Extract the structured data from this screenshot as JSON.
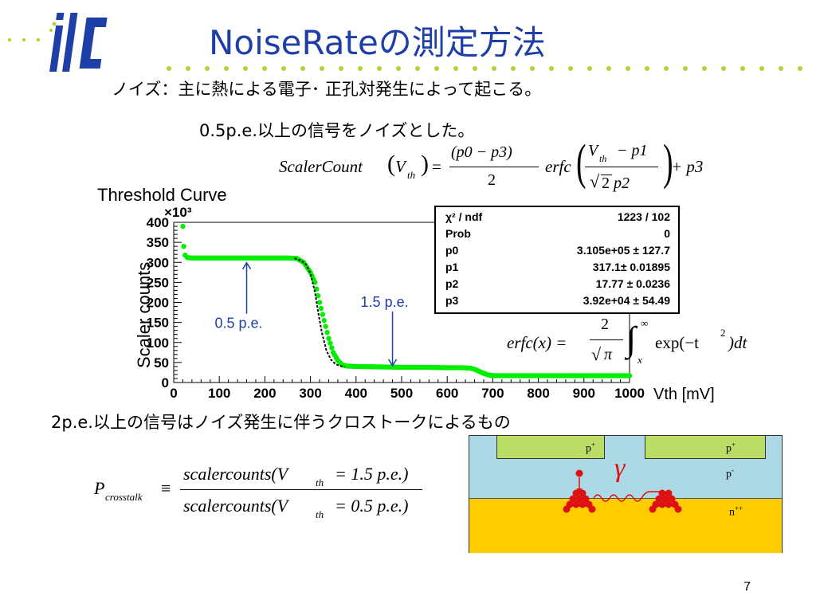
{
  "title": "NoiseRateの測定方法",
  "logo_text": "ilc",
  "intro_line1": "ノイズ：主に熱による電子･ 正孔対発生によって起こる。",
  "intro_line2": "0.5p.e.以上の信号をノイズとした。",
  "formula_scaler": {
    "lhs": "ScalerCount",
    "var": "V",
    "sub": "th",
    "num": "(p0 − p3)",
    "den": "2",
    "erfc": "erfc",
    "inner_num_a": "V",
    "inner_num_sub": "th",
    "inner_num_b": "− p1",
    "inner_den_sqrt": "2",
    "inner_den_b": "p2",
    "tail": "+ p3"
  },
  "formula_erfc": {
    "lhs": "erfc(x) =",
    "num": "2",
    "den": "π",
    "upper": "∞",
    "lower": "x",
    "body": "exp(−t",
    "exp": "2",
    "close": ")dt"
  },
  "chart_label": "Threshold Curve",
  "crosstalk_line": "2p.e.以上の信号はノイズ発生に伴うクロストークによるもの",
  "formula_crosstalk": {
    "lhs": "P",
    "lhs_sub": "crosstalk",
    "equiv": "≡",
    "num": "scalercounts(V",
    "num_sub": "th",
    "num_tail": "= 1.5 p.e.)",
    "den": "scalercounts(V",
    "den_sub": "th",
    "den_tail": "= 0.5 p.e.)"
  },
  "page_number": "7",
  "annotations": {
    "pe05": "0.5 p.e.",
    "pe15": "1.5 p.e."
  },
  "device": {
    "p_plus_left": "p",
    "p_plus_right": "p",
    "plus_sup": "+",
    "p_minus": "p",
    "minus_sup": "-",
    "n_pp": "n",
    "pp_sup": "++",
    "gamma": "γ",
    "colors": {
      "p_region": "#add8e6",
      "n_region": "#ffcc00",
      "p_plus": "#bbdd66",
      "electrons": "#dd1111",
      "photon": "#dd1111"
    }
  },
  "stats": {
    "rows": [
      {
        "k": "χ² / ndf",
        "v": "1223 / 102"
      },
      {
        "k": "Prob",
        "v": "0"
      },
      {
        "k": "p0",
        "v": "3.105e+05 ± 127.7"
      },
      {
        "k": "p1",
        "v": "317.1± 0.01895"
      },
      {
        "k": "p2",
        "v": "17.77 ± 0.0236"
      },
      {
        "k": "p3",
        "v": "3.92e+04 ± 54.49"
      }
    ]
  },
  "chart_data": {
    "type": "scatter",
    "title": "Threshold Curve",
    "xlabel": "Vth [mV]",
    "ylabel": "Scaler counts",
    "y_multiplier_label": "×10³",
    "xlim": [
      0,
      1000
    ],
    "ylim": [
      0,
      400
    ],
    "x_ticks": [
      "0",
      "100",
      "200",
      "300",
      "400",
      "500",
      "600",
      "700",
      "800",
      "900",
      "1000"
    ],
    "y_ticks": [
      "0",
      "50",
      "100",
      "150",
      "200",
      "250",
      "300",
      "350",
      "400"
    ],
    "colors": {
      "data": "#00ee00",
      "fit": "#000000"
    },
    "series": [
      {
        "name": "data",
        "x": [
          20,
          22,
          25,
          30,
          40,
          60,
          100,
          150,
          200,
          250,
          270,
          285,
          300,
          310,
          320,
          330,
          340,
          350,
          360,
          370,
          380,
          400,
          450,
          500,
          550,
          600,
          630,
          650,
          660,
          670,
          680,
          690,
          700,
          750,
          800,
          900,
          1000
        ],
        "y": [
          390,
          340,
          318,
          312,
          311,
          311,
          311,
          311,
          311,
          311,
          310,
          300,
          275,
          250,
          200,
          155,
          110,
          75,
          55,
          44,
          41,
          40,
          39,
          38,
          38,
          37,
          37,
          36,
          33,
          28,
          23,
          19,
          17,
          17,
          17,
          17,
          17
        ]
      },
      {
        "name": "fit",
        "x": [
          265,
          280,
          290,
          300,
          310,
          317,
          325,
          335,
          345,
          355,
          365,
          375
        ],
        "y": [
          310,
          304,
          295,
          272,
          225,
          175,
          125,
          80,
          57,
          46,
          41,
          40
        ]
      }
    ],
    "fit_function": "erfc",
    "fit_params": {
      "p0": 310500,
      "p1": 317.1,
      "p2": 17.77,
      "p3": 39200
    },
    "annotations": [
      {
        "text": "0.5 p.e.",
        "x": 160,
        "y": 311
      },
      {
        "text": "1.5 p.e.",
        "x": 480,
        "y": 38
      }
    ]
  }
}
